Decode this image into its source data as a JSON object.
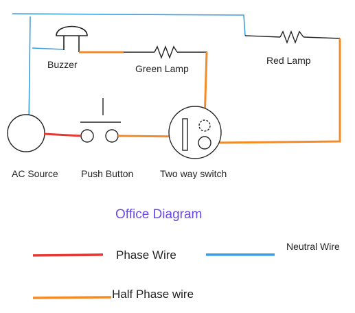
{
  "title": "Office Diagram",
  "components": {
    "buzzer": "Buzzer",
    "green_lamp": "Green Lamp",
    "red_lamp": "Red Lamp",
    "ac_source": "AC Source",
    "push_button": "Push Button",
    "two_way_switch": "Two way switch"
  },
  "legend": {
    "phase": "Phase Wire",
    "neutral": "Neutral Wire",
    "half_phase": "Half Phase wire"
  },
  "colors": {
    "phase": "#e53935",
    "neutral": "#3a9ee0",
    "half_phase": "#f28c28",
    "ink": "#222222",
    "title": "#6a4ae6"
  }
}
